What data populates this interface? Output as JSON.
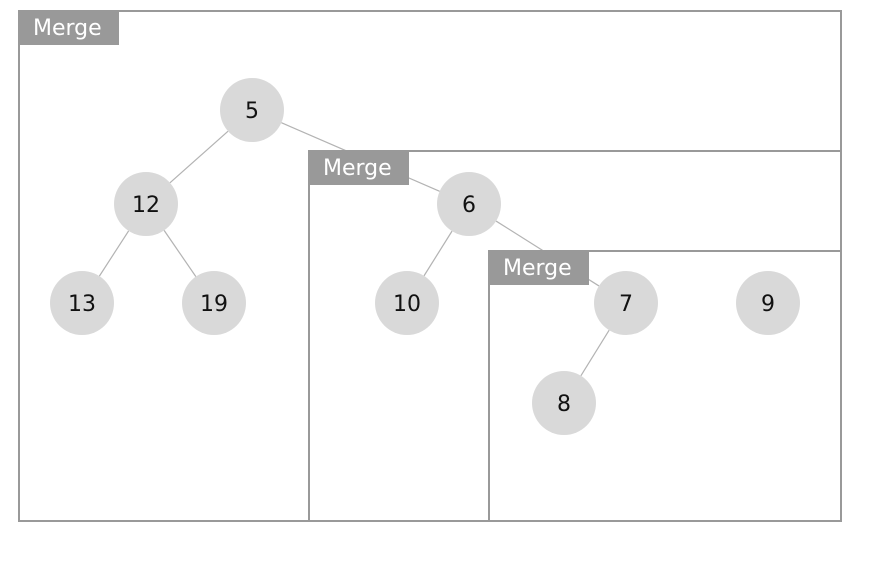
{
  "colors": {
    "frame": "#999999",
    "tab_fill": "#999999",
    "tab_text": "#ffffff",
    "node_fill": "#d9d9d9",
    "edge": "#b3b3b3",
    "node_text": "#111111"
  },
  "merge_boxes": [
    {
      "label": "Merge"
    },
    {
      "label": "Merge"
    },
    {
      "label": "Merge"
    }
  ],
  "nodes": [
    {
      "id": "n5",
      "value": "5"
    },
    {
      "id": "n12",
      "value": "12"
    },
    {
      "id": "n13",
      "value": "13"
    },
    {
      "id": "n19",
      "value": "19"
    },
    {
      "id": "n6",
      "value": "6"
    },
    {
      "id": "n10",
      "value": "10"
    },
    {
      "id": "n7",
      "value": "7"
    },
    {
      "id": "n8",
      "value": "8"
    },
    {
      "id": "n9",
      "value": "9"
    }
  ],
  "edges": [
    {
      "from": "n5",
      "to": "n12"
    },
    {
      "from": "n5",
      "to": "n6"
    },
    {
      "from": "n12",
      "to": "n13"
    },
    {
      "from": "n12",
      "to": "n19"
    },
    {
      "from": "n6",
      "to": "n10"
    },
    {
      "from": "n6",
      "to": "n7"
    },
    {
      "from": "n7",
      "to": "n8"
    }
  ]
}
